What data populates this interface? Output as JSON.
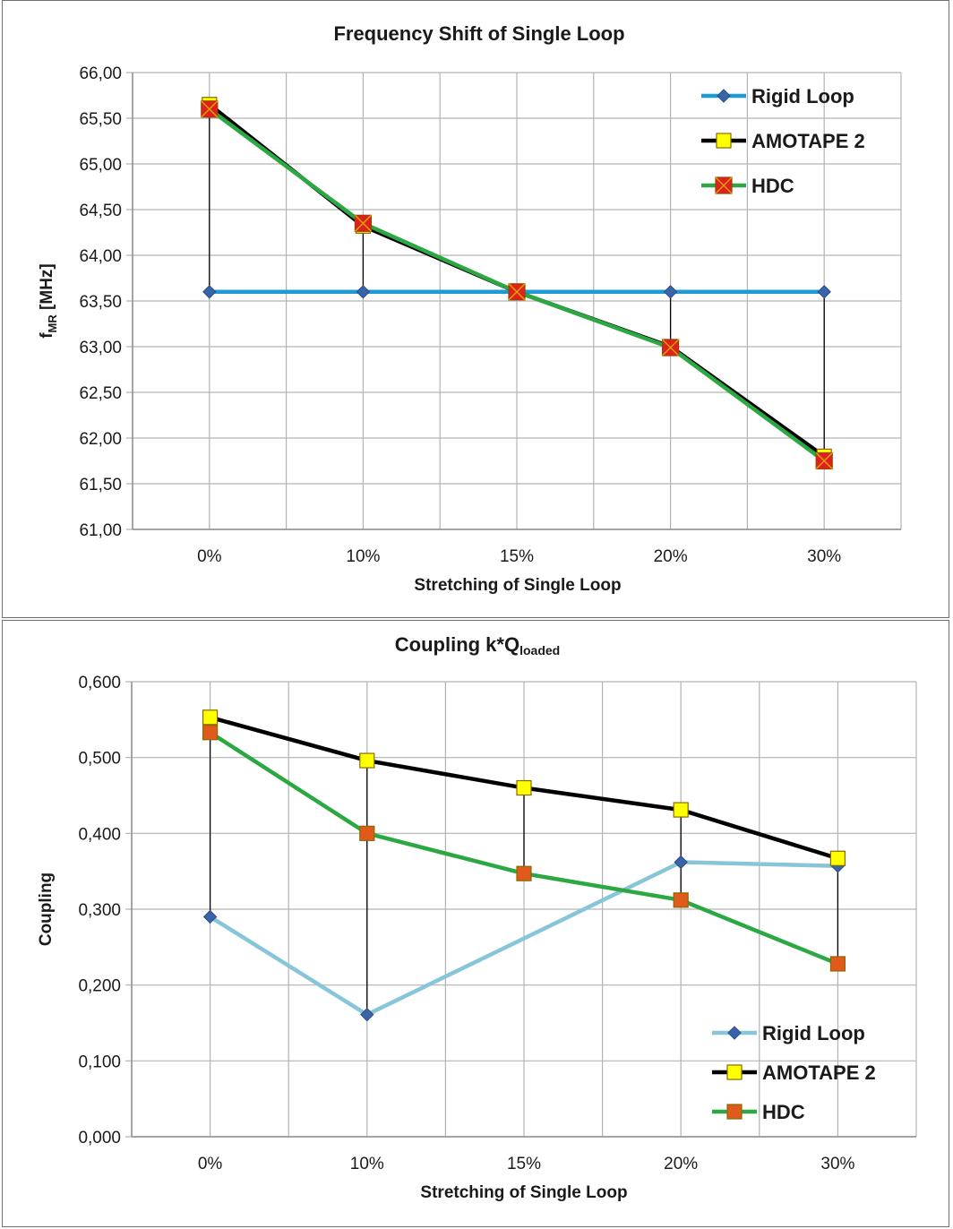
{
  "chart_data": [
    {
      "type": "line",
      "title": "Frequency Shift of Single Loop",
      "xlabel": "Stretching of Single Loop",
      "ylabel_main": "f",
      "ylabel_sub": "MR",
      "ylabel_unit": " [MHz]",
      "categories": [
        "0%",
        "10%",
        "15%",
        "20%",
        "30%"
      ],
      "ylim": [
        61.0,
        66.0
      ],
      "yticks": [
        61.0,
        61.5,
        62.0,
        62.5,
        63.0,
        63.5,
        64.0,
        64.5,
        65.0,
        65.5,
        66.0
      ],
      "ytick_labels": [
        "61,00",
        "61,50",
        "62,00",
        "62,50",
        "63,00",
        "63,50",
        "64,00",
        "64,50",
        "65,00",
        "65,50",
        "66,00"
      ],
      "legend_position": "top-right",
      "series": [
        {
          "name": "Rigid Loop",
          "values": [
            63.6,
            63.6,
            63.6,
            63.6,
            63.6
          ],
          "line_color": "#1e9ad6",
          "marker": "diamond",
          "marker_color": "#3a64a8"
        },
        {
          "name": "AMOTAPE 2",
          "values": [
            65.65,
            64.32,
            63.6,
            63.0,
            61.8
          ],
          "line_color": "#000000",
          "marker": "square",
          "marker_color": "#ffff00"
        },
        {
          "name": "HDC",
          "values": [
            65.6,
            64.35,
            63.6,
            62.99,
            61.75
          ],
          "line_color": "#2ca843",
          "marker": "square-x",
          "marker_color": "#e02020"
        }
      ]
    },
    {
      "type": "line",
      "title_main": "Coupling k*Q",
      "title_sub": "loaded",
      "xlabel": "Stretching of Single Loop",
      "ylabel": "Coupling",
      "categories": [
        "0%",
        "10%",
        "15%",
        "20%",
        "30%"
      ],
      "ylim": [
        0.0,
        0.6
      ],
      "yticks": [
        0.0,
        0.1,
        0.2,
        0.3,
        0.4,
        0.5,
        0.6
      ],
      "ytick_labels": [
        "0,000",
        "0,100",
        "0,200",
        "0,300",
        "0,400",
        "0,500",
        "0,600"
      ],
      "legend_position": "bottom-right",
      "series": [
        {
          "name": "Rigid Loop",
          "values": [
            0.29,
            0.161,
            null,
            0.362,
            0.357
          ],
          "line_color": "#87c5d8",
          "marker": "diamond",
          "marker_color": "#3a64a8"
        },
        {
          "name": "AMOTAPE 2",
          "values": [
            0.553,
            0.496,
            0.46,
            0.431,
            0.367
          ],
          "line_color": "#000000",
          "marker": "square",
          "marker_color": "#ffff00"
        },
        {
          "name": "HDC",
          "values": [
            0.533,
            0.4,
            0.347,
            0.312,
            0.228
          ],
          "line_color": "#2ca843",
          "marker": "square",
          "marker_color": "#e05a1c"
        }
      ]
    }
  ]
}
